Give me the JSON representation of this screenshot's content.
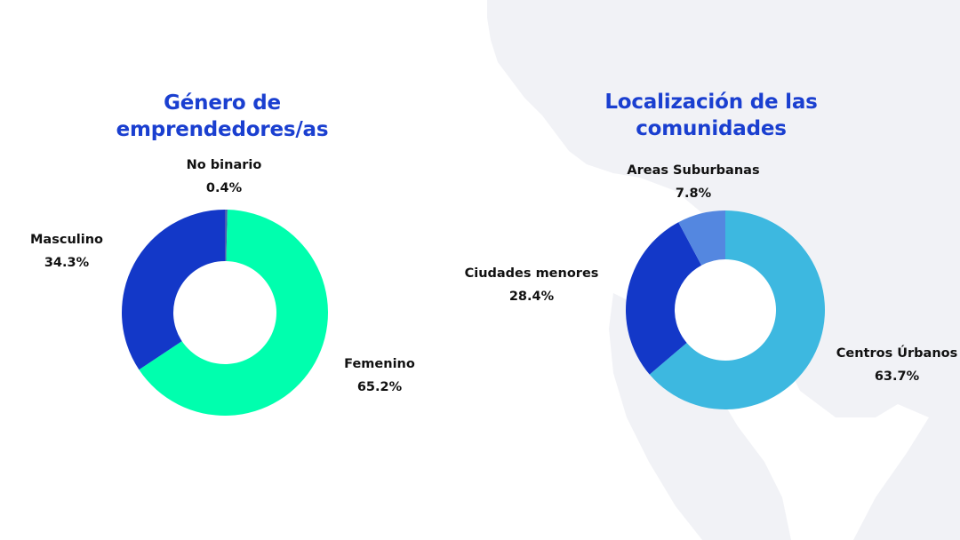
{
  "charts": {
    "gender": {
      "title_line1": "Género de",
      "title_line2": "emprendedores/as"
    },
    "location": {
      "title_line1": "Localización de las",
      "title_line2": "comunidades"
    }
  },
  "colors": {
    "title": "#1a3fd0",
    "background_map": "#f1f2f6",
    "femenino": "#00ffae",
    "masculino": "#1338c8",
    "no_binario": "#4a5fb0",
    "centros_urbanos": "#3db8e0",
    "ciudades_menores": "#1338c8",
    "areas_suburbanas": "#5487e0"
  },
  "chart_data": [
    {
      "type": "pie",
      "donut": true,
      "title": "Género de emprendedores/as",
      "categories": [
        "No binario",
        "Femenino",
        "Masculino"
      ],
      "values": [
        0.4,
        65.2,
        34.3
      ],
      "value_labels": [
        "0.4%",
        "65.2%",
        "34.3%"
      ],
      "colors": [
        "#4a5fb0",
        "#00ffae",
        "#1338c8"
      ],
      "start": "12 o'clock, clockwise",
      "legend": "none (direct labels)"
    },
    {
      "type": "pie",
      "donut": true,
      "title": "Localización de las comunidades",
      "categories": [
        "Centros Úrbanos",
        "Ciudades menores",
        "Areas Suburbanas"
      ],
      "values": [
        63.7,
        28.4,
        7.8
      ],
      "value_labels": [
        "63.7%",
        "28.4%",
        "7.8%"
      ],
      "colors": [
        "#3db8e0",
        "#1338c8",
        "#5487e0"
      ],
      "start": "12 o'clock, clockwise",
      "legend": "none (direct labels)"
    }
  ]
}
